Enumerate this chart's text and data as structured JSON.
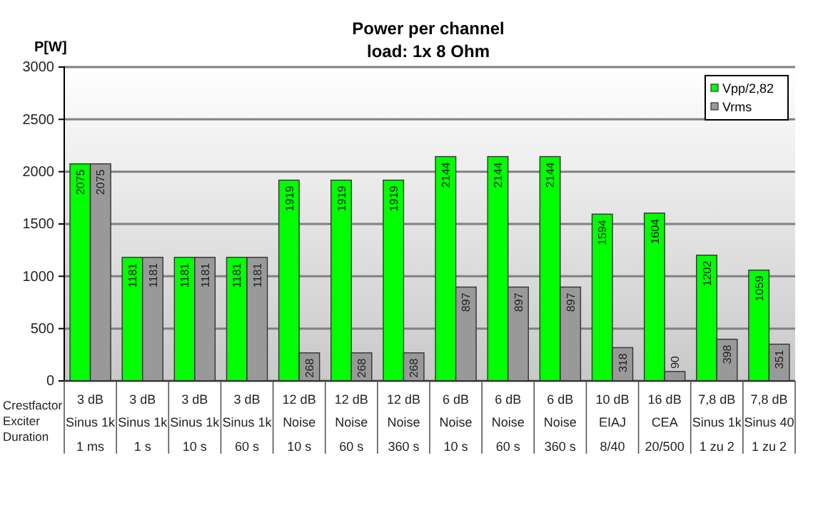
{
  "chart_data": {
    "type": "bar",
    "title": "Power per channel",
    "subtitle": "load:  1x 8 Ohm",
    "ylabel": "P[W]",
    "categories": [
      "3 dB\nSinus 1k\n1 ms",
      "3 dB\nSinus 1k\n1 s",
      "3 dB\nSinus 1k\n10 s",
      "3 dB\nSinus 1k\n60 s",
      "12 dB\nNoise\n10 s",
      "12 dB\nNoise\n60 s",
      "12 dB\nNoise\n360 s",
      "6 dB\nNoise\n10 s",
      "6 dB\nNoise\n60 s",
      "6 dB\nNoise\n360 s",
      "10 dB\nEIAJ\n8/40",
      "16 dB\nCEA\n20/500",
      "7,8 dB\nSinus 1k\n1 zu 2",
      "7,8 dB\nSinus 40\n1 zu 2"
    ],
    "series": [
      {
        "name": "Vpp/2,82",
        "color": "#00ff00",
        "values": [
          2075,
          1181,
          1181,
          1181,
          1919,
          1919,
          1919,
          2144,
          2144,
          2144,
          1594,
          1604,
          1202,
          1059
        ]
      },
      {
        "name": "Vrms",
        "color": "#999999",
        "values": [
          2075,
          1181,
          1181,
          1181,
          268,
          268,
          268,
          897,
          897,
          897,
          318,
          90,
          398,
          351
        ]
      }
    ],
    "annotations": [
      "Crestfactor",
      "Exciter",
      "Duration"
    ],
    "ylim": [
      0,
      3000
    ],
    "yticks": [
      0,
      500,
      1000,
      1500,
      2000,
      2500,
      3000
    ],
    "grid": "y",
    "legend": "top right",
    "data_labels": true
  }
}
